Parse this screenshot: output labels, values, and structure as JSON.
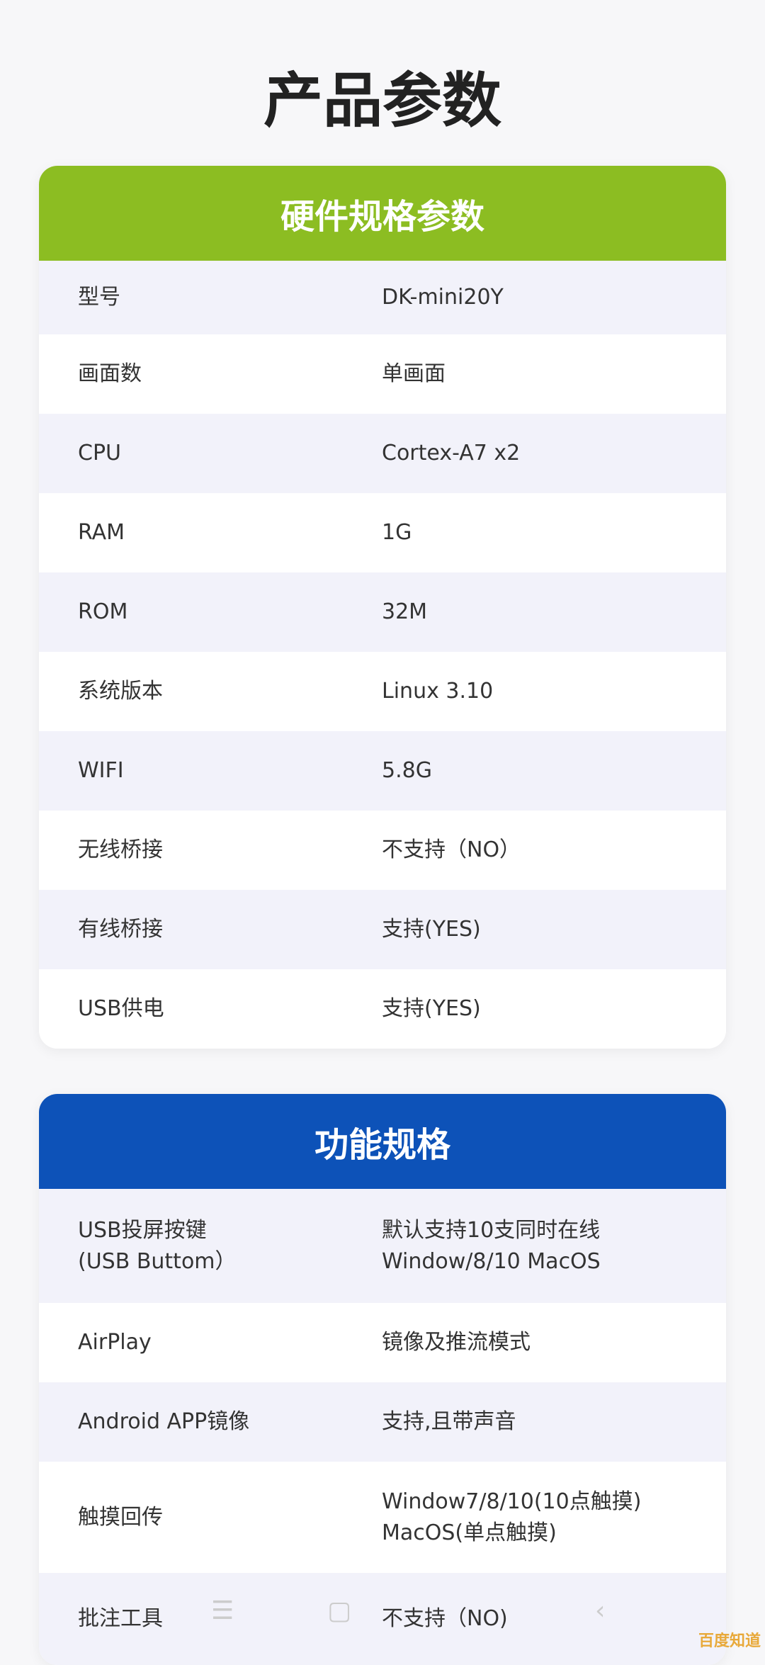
{
  "page_title": "产品参数",
  "colors": {
    "hardware_header": "#8cbd22",
    "function_header": "#0d52b8"
  },
  "hardware": {
    "title": "硬件规格参数",
    "rows": [
      {
        "label": "型号",
        "value": "DK-mini20Y"
      },
      {
        "label": "画面数",
        "value": "单画面"
      },
      {
        "label": "CPU",
        "value": "Cortex-A7 x2"
      },
      {
        "label": "RAM",
        "value": "1G"
      },
      {
        "label": "ROM",
        "value": "32M"
      },
      {
        "label": "系统版本",
        "value": "Linux 3.10"
      },
      {
        "label": "WIFI",
        "value": " 5.8G"
      },
      {
        "label": "无线桥接",
        "value": "不支持（NO）"
      },
      {
        "label": "有线桥接",
        "value": "支持(YES)"
      },
      {
        "label": "USB供电",
        "value": "支持(YES)"
      }
    ]
  },
  "function": {
    "title": "功能规格",
    "rows": [
      {
        "label": "USB投屏按键\n(USB Buttom）",
        "value": "默认支持10支同时在线\nWindow/8/10 MacOS"
      },
      {
        "label": "AirPlay",
        "value": "镜像及推流模式"
      },
      {
        "label": "Android APP镜像",
        "value": "支持,且带声音"
      },
      {
        "label": "触摸回传",
        "value": "Window7/8/10(10点触摸)\nMacOS(单点触摸)"
      },
      {
        "label": "批注工具",
        "value": "不支持（NO)"
      }
    ]
  },
  "nav": {
    "menu_icon": "☰",
    "home_icon": "▢",
    "back_icon": "‹"
  },
  "watermark": "百度知道"
}
